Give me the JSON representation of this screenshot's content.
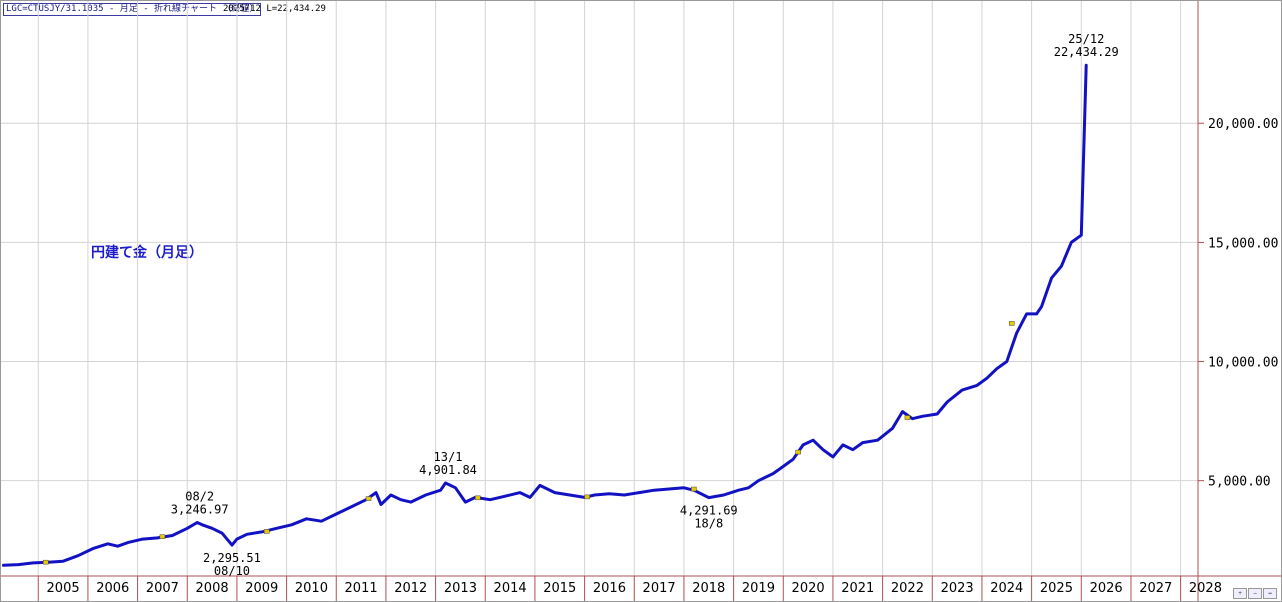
{
  "header": {
    "instrument": "LGC=CTUSJY/31.1035 - 月足 - 折れ線チャート （終値）",
    "latest": "2025/12 L=22,434.29"
  },
  "series_label": "円建て金（月足）",
  "colors": {
    "line": "#1212c4",
    "grid": "#d4d4d4",
    "axis": "#b05050",
    "label_text": "#1c1ccc",
    "marker": "#e8c800"
  },
  "chart_data": {
    "type": "line",
    "title": "",
    "xlabel": "",
    "ylabel": "",
    "x_ticks": [
      "2005",
      "2006",
      "2007",
      "2008",
      "2009",
      "2010",
      "2011",
      "2012",
      "2013",
      "2014",
      "2015",
      "2016",
      "2017",
      "2018",
      "2019",
      "2020",
      "2021",
      "2022",
      "2023",
      "2024",
      "2025",
      "2026",
      "2027",
      "2028"
    ],
    "y_ticks": [
      5000,
      10000,
      15000,
      20000
    ],
    "y_tick_labels": [
      "5,000.00",
      "10,000.00",
      "15,000.00",
      "20,000.00"
    ],
    "xlim": [
      2004.05,
      2028.15
    ],
    "ylim": [
      1000,
      25130
    ],
    "grid": true,
    "series": [
      {
        "x": [
          2004.1,
          2004.4,
          2004.7,
          2005.0,
          2005.3,
          2005.6,
          2005.9,
          2006.2,
          2006.4,
          2006.6,
          2006.9,
          2007.2,
          2007.5,
          2007.8,
          2008.0,
          2008.1,
          2008.3,
          2008.5,
          2008.7,
          2008.8,
          2009.0,
          2009.3,
          2009.6,
          2009.9,
          2010.2,
          2010.5,
          2010.8,
          2011.1,
          2011.4,
          2011.6,
          2011.7,
          2011.9,
          2012.1,
          2012.3,
          2012.6,
          2012.9,
          2013.0,
          2013.2,
          2013.4,
          2013.6,
          2013.9,
          2014.2,
          2014.5,
          2014.7,
          2014.9,
          2015.2,
          2015.5,
          2015.8,
          2016.0,
          2016.3,
          2016.6,
          2016.9,
          2017.2,
          2017.5,
          2017.8,
          2018.0,
          2018.3,
          2018.6,
          2018.9,
          2019.1,
          2019.3,
          2019.6,
          2019.8,
          2020.0,
          2020.2,
          2020.4,
          2020.6,
          2020.8,
          2021.0,
          2021.2,
          2021.4,
          2021.7,
          2022.0,
          2022.2,
          2022.4,
          2022.6,
          2022.9,
          2023.1,
          2023.4,
          2023.7,
          2023.9,
          2024.1,
          2024.3,
          2024.5,
          2024.7,
          2024.9,
          2025.0,
          2025.2,
          2025.4,
          2025.6,
          2025.8,
          2025.9
        ],
        "y": [
          1450,
          1480,
          1550,
          1580,
          1620,
          1850,
          2150,
          2350,
          2250,
          2400,
          2550,
          2600,
          2700,
          3000,
          3246.97,
          3150,
          3000,
          2800,
          2295.51,
          2550,
          2750,
          2850,
          3000,
          3150,
          3400,
          3300,
          3600,
          3900,
          4200,
          4500,
          4000,
          4400,
          4200,
          4100,
          4400,
          4600,
          4901.84,
          4700,
          4100,
          4300,
          4200,
          4350,
          4500,
          4300,
          4800,
          4500,
          4400,
          4300,
          4400,
          4450,
          4400,
          4500,
          4600,
          4650,
          4700,
          4600,
          4291.69,
          4400,
          4600,
          4700,
          5000,
          5300,
          5600,
          5900,
          6500,
          6700,
          6300,
          6000,
          6500,
          6300,
          6600,
          6700,
          7200,
          7900,
          7600,
          7700,
          7800,
          8300,
          8800,
          9000,
          9300,
          9700,
          10000,
          11200,
          12000,
          12000,
          12300,
          13500,
          14000,
          15000,
          15300,
          22434.29
        ]
      }
    ],
    "markers": [
      {
        "x": 2004.95,
        "y": 1580
      },
      {
        "x": 2007.3,
        "y": 2650
      },
      {
        "x": 2009.4,
        "y": 2870
      },
      {
        "x": 2011.45,
        "y": 4250
      },
      {
        "x": 2013.65,
        "y": 4280
      },
      {
        "x": 2015.85,
        "y": 4320
      },
      {
        "x": 2018.0,
        "y": 4650
      },
      {
        "x": 2020.1,
        "y": 6200
      },
      {
        "x": 2022.3,
        "y": 7650
      },
      {
        "x": 2024.4,
        "y": 11600
      }
    ],
    "annotations": [
      {
        "x": 2008.05,
        "y": 3246.97,
        "date": "08/2",
        "value": "3,246.97",
        "pos": "above"
      },
      {
        "x": 2008.7,
        "y": 2295.51,
        "date": "08/10",
        "value": "2,295.51",
        "pos": "below"
      },
      {
        "x": 2013.05,
        "y": 4901.84,
        "date": "13/1",
        "value": "4,901.84",
        "pos": "above"
      },
      {
        "x": 2018.3,
        "y": 4291.69,
        "date": "18/8",
        "value": "4,291.69",
        "pos": "below"
      },
      {
        "x": 2025.9,
        "y": 22434.29,
        "date": "25/12",
        "value": "22,434.29",
        "pos": "above"
      }
    ]
  }
}
